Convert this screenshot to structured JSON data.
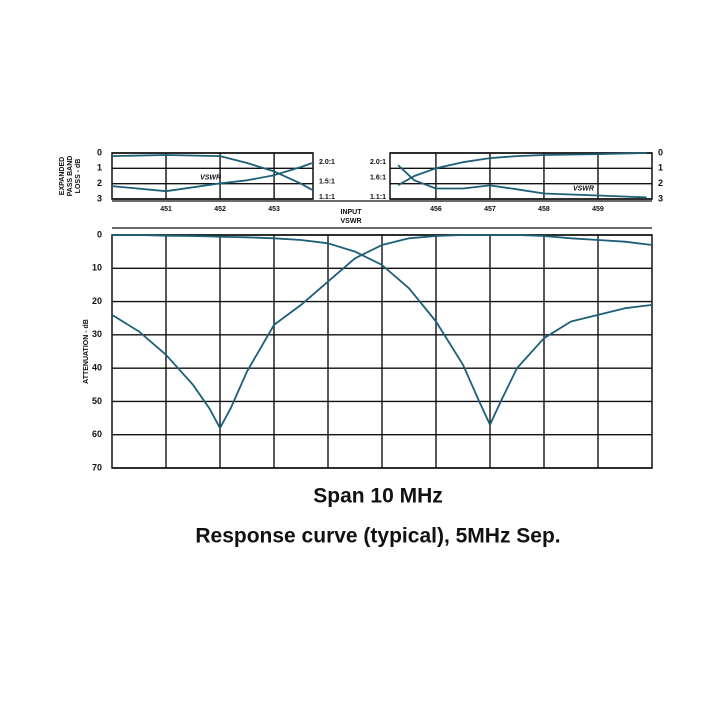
{
  "chart_data": [
    {
      "type": "line",
      "ylabel": [
        "EXPANDED",
        "PASS BAND",
        "LOSS - dB"
      ],
      "y2label": [
        "INPUT",
        "VSWR"
      ],
      "xlim": [
        450,
        453.72
      ],
      "xticks": [
        451,
        452,
        453
      ],
      "xtick_labels": true,
      "ylim": [
        3,
        0
      ],
      "yticks": [
        0,
        1,
        2,
        3
      ],
      "y2lim": [
        1.05,
        2.23
      ],
      "y2ticks": [
        {
          "value": 2.0,
          "label": "2.0:1"
        },
        {
          "value": 1.5,
          "label": "1.5:1"
        },
        {
          "value": 1.1,
          "label": "1.1:1"
        }
      ],
      "x": [
        450,
        451,
        452,
        452.5,
        453,
        453.5,
        453.7
      ],
      "series": [
        {
          "color": "#1d5f78",
          "values": [
            0.2,
            0.13,
            0.2,
            0.65,
            1.2,
            2.0,
            2.4
          ]
        },
        {
          "name": "VSWR",
          "color": "#1d5f78",
          "axis": "y2",
          "values": [
            1.38,
            1.25,
            1.45,
            1.53,
            1.66,
            1.87,
            1.97
          ]
        }
      ]
    },
    {
      "type": "line",
      "xlim": [
        455.15,
        460
      ],
      "xticks": [
        456,
        457,
        458,
        459
      ],
      "xtick_labels": true,
      "ylim": [
        3,
        0
      ],
      "yticks": [
        0,
        1,
        2,
        3
      ],
      "y2lim": [
        1.05,
        2.23
      ],
      "y2ticks": [
        {
          "value": 2.0,
          "label": "2.0:1"
        },
        {
          "value": 1.6,
          "label": "1.6:1"
        },
        {
          "value": 1.1,
          "label": "1.1:1"
        }
      ],
      "x": [
        455.3,
        455.6,
        456,
        456.5,
        457,
        457.5,
        458,
        459,
        459.9
      ],
      "series": [
        {
          "color": "#1d5f78",
          "values": [
            2.1,
            1.5,
            1.0,
            0.6,
            0.33,
            0.2,
            0.13,
            0.07,
            0
          ]
        },
        {
          "name": "VSWR",
          "color": "#1d5f78",
          "axis": "y2",
          "values": [
            1.92,
            1.53,
            1.32,
            1.32,
            1.4,
            1.3,
            1.19,
            1.14,
            1.09
          ]
        }
      ]
    },
    {
      "type": "line",
      "ylabel": [
        "ATTENUATION - dB"
      ],
      "caption": [
        "Span 10 MHz",
        "Response curve (typical), 5MHz Sep."
      ],
      "xlim": [
        450,
        460
      ],
      "xticks": [
        451,
        452,
        453,
        454,
        455,
        456,
        457,
        458,
        459
      ],
      "xtick_labels": false,
      "ylim": [
        70,
        0
      ],
      "yticks": [
        0,
        10,
        20,
        30,
        40,
        50,
        60,
        70
      ],
      "grid": true,
      "x": [
        450,
        450.5,
        451,
        451.5,
        451.8,
        452,
        452.2,
        452.5,
        453,
        453.5,
        454,
        454.5,
        455,
        455.5,
        456,
        456.5,
        456.8,
        457,
        457.2,
        457.5,
        458,
        458.5,
        459,
        459.5,
        460
      ],
      "series": [
        {
          "color": "#1d5f78",
          "values": [
            24,
            29,
            36,
            45,
            52,
            58,
            52,
            41,
            27,
            21,
            14,
            7,
            3,
            1,
            0.3,
            0,
            0,
            0,
            0,
            0,
            0.3,
            1,
            1.5,
            2,
            3
          ]
        },
        {
          "color": "#1d5f78",
          "values": [
            0,
            0,
            0.2,
            0.3,
            0.4,
            0.5,
            0.6,
            0.7,
            1,
            1.5,
            2.5,
            5,
            9,
            16,
            26,
            39,
            50,
            57,
            50,
            40,
            31,
            26,
            24,
            22,
            21
          ]
        }
      ]
    }
  ]
}
